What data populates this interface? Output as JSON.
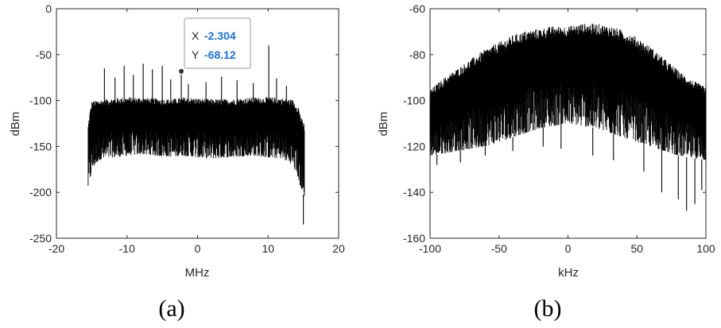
{
  "chart_data": [
    {
      "type": "line",
      "caption": "(a)",
      "xlabel": "MHz",
      "ylabel": "dBm",
      "xlim": [
        -20,
        20
      ],
      "ylim": [
        -250,
        0
      ],
      "xticks": [
        -20,
        -10,
        0,
        10,
        20
      ],
      "yticks": [
        0,
        -50,
        -100,
        -150,
        -200,
        -250
      ],
      "grid": false,
      "legend": "none",
      "color": "#000000",
      "series": [
        {
          "x": [
            -15.5,
            -15.3,
            -15.0,
            -14.0,
            -12.0,
            -10.0,
            -8.0,
            -6.0,
            -4.0,
            -2.0,
            0.0,
            2.0,
            4.0,
            6.0,
            8.0,
            10.0,
            12.0,
            13.5,
            14.3,
            14.8,
            15.2
          ],
          "upper": [
            -130,
            -118,
            -105,
            -103,
            -101,
            -100,
            -100,
            -101,
            -102,
            -100,
            -101,
            -102,
            -102,
            -101,
            -100,
            -100,
            -101,
            -103,
            -110,
            -125,
            -130
          ],
          "lower": [
            -195,
            -190,
            -175,
            -165,
            -162,
            -160,
            -158,
            -160,
            -161,
            -160,
            -162,
            -163,
            -162,
            -161,
            -160,
            -162,
            -163,
            -170,
            -185,
            -200,
            -205
          ],
          "spikes": [
            [
              -13.2,
              -65
            ],
            [
              -11.7,
              -75
            ],
            [
              -10.4,
              -62
            ],
            [
              -9.1,
              -72
            ],
            [
              -7.7,
              -60
            ],
            [
              -6.4,
              -66
            ],
            [
              -5.0,
              -62
            ],
            [
              -3.8,
              -77
            ],
            [
              -2.304,
              -68.12
            ],
            [
              -1.3,
              -82
            ],
            [
              1.2,
              -80
            ],
            [
              3.4,
              -74
            ],
            [
              5.6,
              -78
            ],
            [
              7.9,
              -81
            ],
            [
              10.1,
              -40
            ],
            [
              11.2,
              -76
            ],
            [
              12.6,
              -84
            ],
            [
              15.0,
              -235
            ]
          ]
        }
      ],
      "datatip": {
        "x_label": "X",
        "x_value": "-2.304",
        "y_label": "Y",
        "y_value": "-68.12",
        "x": -2.304,
        "y": -68.12
      }
    },
    {
      "type": "line",
      "caption": "(b)",
      "xlabel": "kHz",
      "ylabel": "dBm",
      "xlim": [
        -100,
        100
      ],
      "ylim": [
        -160,
        -60
      ],
      "xticks": [
        -100,
        -50,
        0,
        50,
        100
      ],
      "yticks": [
        -60,
        -80,
        -100,
        -120,
        -140,
        -160
      ],
      "grid": false,
      "legend": "none",
      "color": "#000000",
      "series": [
        {
          "x": [
            -100,
            -90,
            -80,
            -70,
            -60,
            -50,
            -40,
            -30,
            -20,
            -10,
            0,
            10,
            20,
            30,
            40,
            50,
            60,
            70,
            80,
            90,
            100
          ],
          "upper": [
            -97,
            -92,
            -88,
            -84,
            -80,
            -77,
            -74,
            -72,
            -71,
            -70,
            -70,
            -69,
            -69,
            -70,
            -72,
            -75,
            -79,
            -84,
            -89,
            -93,
            -96
          ],
          "lower": [
            -124,
            -123,
            -122,
            -121,
            -120,
            -118,
            -116,
            -114,
            -112,
            -111,
            -110,
            -111,
            -112,
            -114,
            -116,
            -118,
            -120,
            -122,
            -124,
            -125,
            -126
          ],
          "spikes": [
            [
              -95,
              -128
            ],
            [
              -78,
              -127
            ],
            [
              -60,
              -124
            ],
            [
              -40,
              -122
            ],
            [
              -18,
              -120
            ],
            [
              -5,
              -121
            ],
            [
              18,
              -124
            ],
            [
              33,
              -126
            ],
            [
              55,
              -131
            ],
            [
              68,
              -140
            ],
            [
              80,
              -143
            ],
            [
              86,
              -148
            ],
            [
              92,
              -145
            ],
            [
              97,
              -139
            ]
          ]
        }
      ]
    }
  ]
}
